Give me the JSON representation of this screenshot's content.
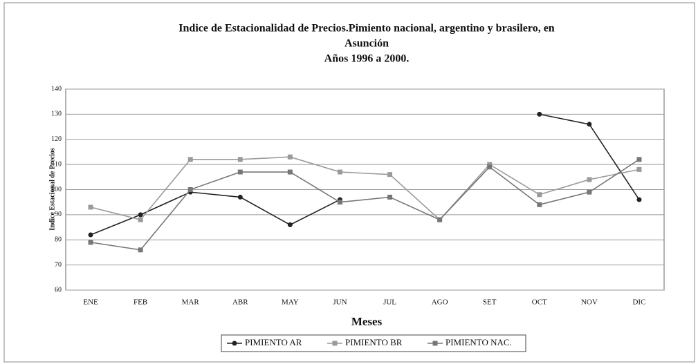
{
  "chart_data": {
    "type": "line",
    "title": [
      "Indice de Estacionalidad de Precios.Pimiento nacional, argentino y  brasilero, en",
      "Asunción",
      "Años  1996 a 2000."
    ],
    "x_label": "Meses",
    "y_label": "Indice Estacional de Precios",
    "categories": [
      "ENE",
      "FEB",
      "MAR",
      "ABR",
      "MAY",
      "JUN",
      "JUL",
      "AGO",
      "SET",
      "OCT",
      "NOV",
      "DIC"
    ],
    "series": [
      {
        "name": "PIMIENTO AR",
        "color": "#222222",
        "values": [
          82,
          90,
          99,
          97,
          86,
          96,
          null,
          null,
          null,
          130,
          126,
          96
        ]
      },
      {
        "name": "PIMIENTO BR",
        "color": "#9a9a9a",
        "values": [
          93,
          88,
          112,
          112,
          113,
          107,
          106,
          88,
          110,
          98,
          104,
          108
        ]
      },
      {
        "name": "PIMIENTO NAC.",
        "color": "#777777",
        "values": [
          79,
          76,
          100,
          107,
          107,
          95,
          97,
          88,
          109,
          94,
          99,
          112
        ]
      }
    ],
    "ylim": [
      60,
      140
    ],
    "yticks": [
      60,
      70,
      80,
      90,
      100,
      110,
      120,
      130,
      140
    ],
    "grid": true,
    "legend": "bottom"
  }
}
